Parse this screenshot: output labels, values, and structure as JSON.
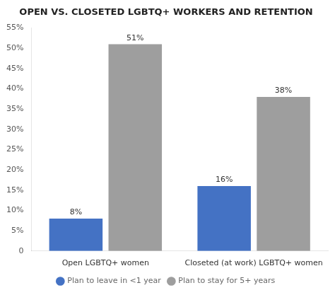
{
  "chart_data": {
    "type": "bar",
    "title": "OPEN VS. CLOSETED LGBTQ+ WORKERS AND RETENTION",
    "categories": [
      "Open LGBTQ+ women",
      "Closeted (at work) LGBTQ+ women"
    ],
    "series": [
      {
        "name": "Plan to leave in <1 year",
        "color": "#4472C4",
        "values": [
          8,
          16
        ],
        "value_labels": [
          "8%",
          "16%"
        ]
      },
      {
        "name": "Plan to stay for 5+ years",
        "color": "#9E9E9E",
        "values": [
          51,
          38
        ],
        "value_labels": [
          "51%",
          "38%"
        ]
      }
    ],
    "ylim": [
      0,
      55
    ],
    "yticks": [
      0,
      {
        "value": 5,
        "label": "5%"
      },
      {
        "value": 10,
        "label": "10%"
      },
      {
        "value": 15,
        "label": "15%"
      },
      {
        "value": 20,
        "label": "20%"
      },
      {
        "value": 25,
        "label": "25%"
      },
      {
        "value": 30,
        "label": "30%"
      },
      {
        "value": 35,
        "label": "35%"
      },
      {
        "value": 40,
        "label": "40%"
      },
      {
        "value": 45,
        "label": "45%"
      },
      {
        "value": 50,
        "label": "50%"
      },
      {
        "value": 55,
        "label": "55%"
      }
    ],
    "grid": false,
    "legend": "bottom",
    "data_labels": true
  }
}
